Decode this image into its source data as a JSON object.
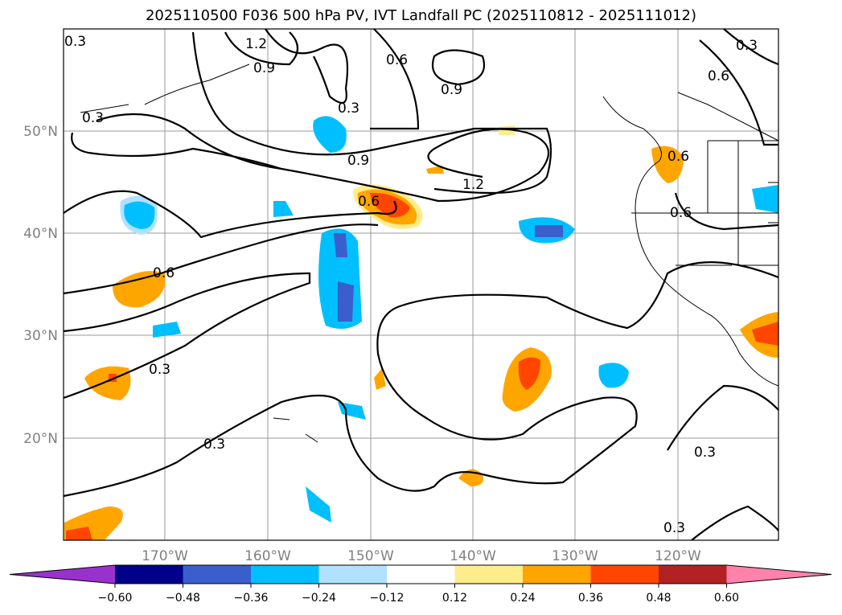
{
  "title": "2025110500 F036 500 hPa PV, IVT Landfall PC (2025110812 - 2025111012)",
  "map": {
    "lat_labels": [
      "50°N",
      "40°N",
      "30°N",
      "20°N"
    ],
    "lon_labels": [
      "170°W",
      "160°W",
      "150°W",
      "140°W",
      "130°W",
      "120°W"
    ],
    "contour_labels": [
      "0.3",
      "1.2",
      "0.9",
      "0.6",
      "0.3",
      "0.9",
      "0.3",
      "0.6",
      "0.3",
      "0.9",
      "0.6",
      "1.2",
      "0.6",
      "0.6",
      "0.6",
      "0.3",
      "0.3",
      "0.3",
      "0.3"
    ]
  },
  "colorbar": {
    "colors": [
      "#9932cc",
      "#00008b",
      "#3a5fcd",
      "#00bfff",
      "#b0e2ff",
      "#ffffff",
      "#ffec8b",
      "#ffa500",
      "#ff4500",
      "#b22222",
      "#ff82ab"
    ],
    "ticks": [
      "−0.60",
      "−0.48",
      "−0.36",
      "−0.24",
      "−0.12",
      "0.12",
      "0.24",
      "0.36",
      "0.48",
      "0.60"
    ]
  }
}
